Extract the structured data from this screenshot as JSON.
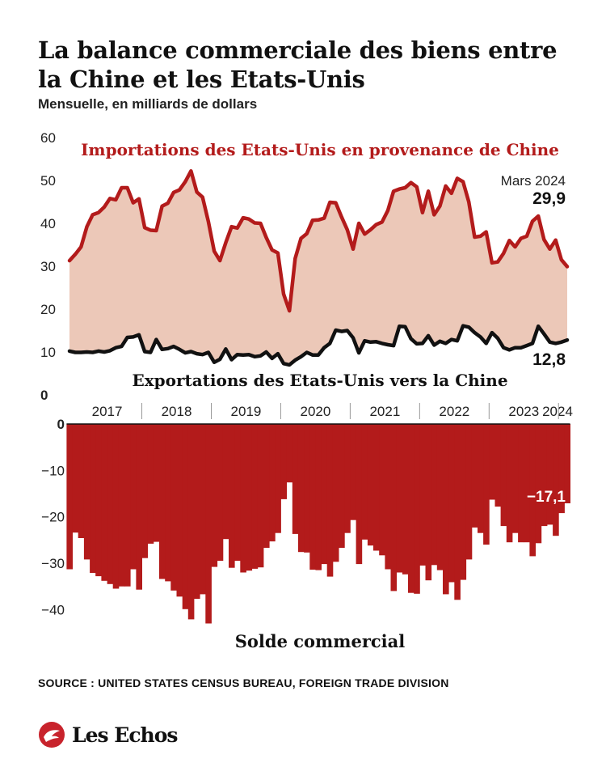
{
  "header": {
    "title": "La balance commerciale des biens entre la Chine et les Etats-Unis",
    "subtitle": "Mensuelle, en milliards de dollars"
  },
  "footer": {
    "source": "SOURCE : UNITED STATES CENSUS BUREAU, FOREIGN TRADE DIVISION",
    "brand": "Les Echos"
  },
  "colors": {
    "imports_line": "#b31b1b",
    "imports_fill": "#ecc8b8",
    "exports_line": "#111111",
    "balance_bar": "#b31b1b",
    "annotation_red": "#b31b1b"
  },
  "icons": {
    "brand_logo": "les-echos-logo-icon"
  },
  "chart_data": [
    {
      "type": "line",
      "x_start": "2016-12",
      "x_end": "2024-03",
      "xticks": [
        "2017",
        "2018",
        "2019",
        "2020",
        "2021",
        "2022",
        "2023",
        "2024"
      ],
      "ylim": [
        0,
        60
      ],
      "yticks": [
        0,
        10,
        20,
        30,
        40,
        50,
        60
      ],
      "grid": false,
      "series": [
        {
          "name": "Importations des Etats-Unis en provenance de Chine",
          "values": [
            31.3,
            32.8,
            34.5,
            39.2,
            42.0,
            42.5,
            43.8,
            45.8,
            45.5,
            48.3,
            48.3,
            44.8,
            45.7,
            39.0,
            38.4,
            38.3,
            44.0,
            44.7,
            47.2,
            47.8,
            49.7,
            52.2,
            47.3,
            46.1,
            40.4,
            33.5,
            31.3,
            35.5,
            39.2,
            38.9,
            41.3,
            41.0,
            40.1,
            40.0,
            36.7,
            33.8,
            33.1,
            23.5,
            19.6,
            31.8,
            36.5,
            37.6,
            40.7,
            40.8,
            41.2,
            44.9,
            44.8,
            41.5,
            38.5,
            34.0,
            40.0,
            37.5,
            38.5,
            39.7,
            40.3,
            43.0,
            47.5,
            48.0,
            48.3,
            49.5,
            48.5,
            42.5,
            47.5,
            42.0,
            44.0,
            48.7,
            47.0,
            50.5,
            49.7,
            45.0,
            36.8,
            37.0,
            38.0,
            30.8,
            31.0,
            33.0,
            36.0,
            34.5,
            36.5,
            37.0,
            40.5,
            41.7,
            36.2,
            34.0,
            36.1,
            31.5,
            29.9
          ]
        },
        {
          "name": "Exportations des Etats-Unis vers la Chine",
          "values": [
            10.2,
            9.9,
            9.9,
            10.0,
            9.9,
            10.2,
            10.0,
            10.3,
            11.0,
            11.3,
            13.4,
            13.5,
            14.0,
            10.1,
            9.9,
            12.9,
            10.6,
            10.8,
            11.3,
            10.6,
            9.8,
            10.1,
            9.6,
            9.4,
            9.9,
            7.6,
            8.3,
            10.7,
            8.2,
            9.4,
            9.3,
            9.4,
            8.9,
            9.1,
            10.0,
            8.5,
            9.6,
            7.3,
            7.0,
            8.1,
            8.9,
            9.9,
            9.3,
            9.3,
            11.0,
            12.0,
            15.1,
            14.8,
            15.0,
            13.3,
            9.8,
            12.6,
            12.3,
            12.4,
            12.0,
            11.7,
            11.5,
            16.0,
            15.9,
            13.1,
            11.9,
            12.0,
            13.8,
            11.6,
            12.5,
            12.0,
            12.9,
            12.6,
            16.1,
            15.8,
            14.5,
            13.5,
            12.0,
            14.5,
            13.2,
            11.0,
            10.5,
            11.0,
            11.0,
            11.5,
            12.0,
            16.0,
            14.2,
            12.3,
            12.0,
            12.3,
            12.8
          ]
        }
      ],
      "annotations": {
        "last_label": "Mars 2024",
        "last_import": "29,9",
        "last_export": "12,8"
      }
    },
    {
      "type": "bar",
      "title": "Solde commercial",
      "ylim": [
        -45,
        0
      ],
      "yticks": [
        0,
        -10,
        -20,
        -30,
        -40
      ],
      "ytick_labels": [
        "0",
        "−10",
        "−20",
        "−30",
        "−40"
      ],
      "values": [
        -31.3,
        -23.4,
        -24.6,
        -29.2,
        -32.1,
        -32.8,
        -33.8,
        -34.5,
        -35.5,
        -35.0,
        -35.0,
        -31.3,
        -35.7,
        -28.9,
        -25.8,
        -25.4,
        -33.4,
        -33.9,
        -35.9,
        -37.2,
        -39.9,
        -42.1,
        -37.7,
        -36.7,
        -43.0,
        -30.8,
        -29.5,
        -24.8,
        -31.0,
        -29.5,
        -32.0,
        -31.6,
        -31.2,
        -30.9,
        -26.7,
        -25.3,
        -23.5,
        -16.2,
        -12.6,
        -23.7,
        -27.6,
        -27.7,
        -31.4,
        -31.5,
        -30.2,
        -32.9,
        -29.7,
        -26.7,
        -23.5,
        -20.7,
        -30.2,
        -24.9,
        -26.2,
        -27.3,
        -28.3,
        -31.3,
        -36.0,
        -32.0,
        -32.4,
        -36.4,
        -36.6,
        -30.5,
        -33.7,
        -30.4,
        -31.5,
        -36.7,
        -34.1,
        -37.9,
        -33.6,
        -29.2,
        -22.3,
        -23.5,
        -26.0,
        -16.3,
        -17.8,
        -22.0,
        -25.5,
        -23.5,
        -25.5,
        -25.5,
        -28.5,
        -25.7,
        -22.0,
        -21.7,
        -24.1,
        -19.2,
        -17.1
      ]
    }
  ]
}
